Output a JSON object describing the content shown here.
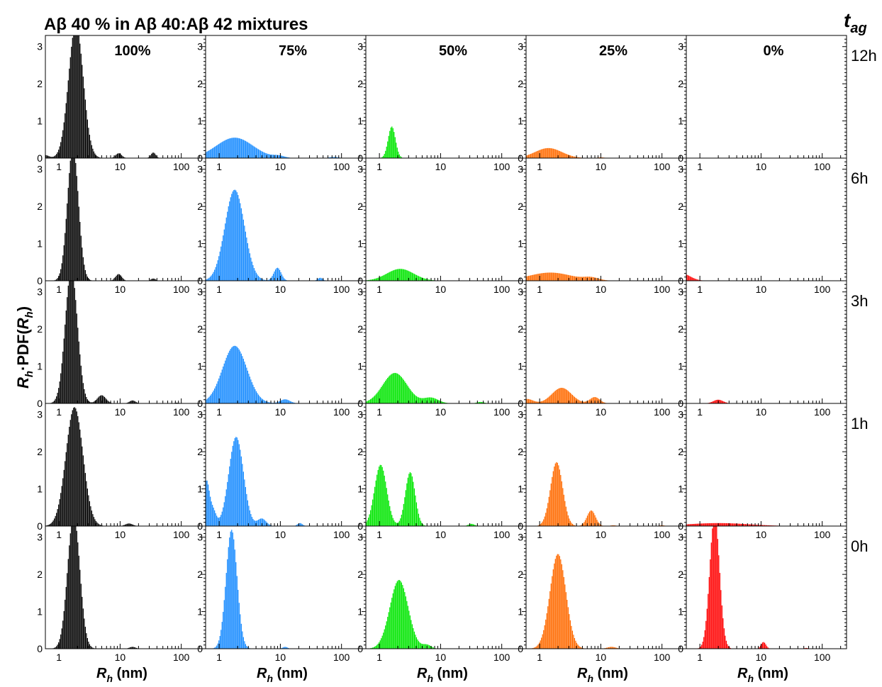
{
  "figure": {
    "title": "Aβ 40 % in Aβ 40:Aβ 42 mixtures",
    "t_label_main": "t",
    "t_label_sub": "ag",
    "ylabel_parts": [
      "R",
      "h",
      "·PDF(",
      "R",
      "h",
      ")"
    ],
    "xlabel_parts": [
      "R",
      "h",
      " (nm)"
    ]
  },
  "chart_data": {
    "type": "bar",
    "layout": "grid 5 rows x 5 columns of histogram panels",
    "columns": [
      "100%",
      "75%",
      "50%",
      "25%",
      "0%"
    ],
    "rows": [
      "12h",
      "6h",
      "3h",
      "1h",
      "0h"
    ],
    "colors": [
      "#000000",
      "#1a8cff",
      "#00e600",
      "#ff6a00",
      "#ff0000"
    ],
    "xscale": "log",
    "xlim": [
      0.6,
      250
    ],
    "ylim": [
      0,
      3.3
    ],
    "xticks": [
      1,
      10,
      100
    ],
    "yticks": [
      0,
      1,
      2,
      3
    ],
    "panels": [
      [
        {
          "peaks": [
            [
              1.9,
              3.6,
              0.12
            ],
            [
              0.6,
              0.08,
              0.06
            ],
            [
              9.5,
              0.13,
              0.05
            ],
            [
              35,
              0.15,
              0.04
            ]
          ]
        },
        {
          "peaks": [
            [
              1.8,
              0.55,
              0.3
            ],
            [
              9.5,
              0.05,
              0.09
            ],
            [
              75,
              0.03,
              0.08
            ]
          ]
        },
        {
          "peaks": [
            [
              1.6,
              0.85,
              0.06
            ]
          ]
        },
        {
          "peaks": [
            [
              1.4,
              0.27,
              0.22
            ],
            [
              10,
              0.02,
              0.06
            ]
          ]
        },
        {
          "peaks": []
        }
      ],
      [
        {
          "peaks": [
            [
              1.7,
              3.6,
              0.09
            ],
            [
              9.5,
              0.18,
              0.05
            ],
            [
              35,
              0.06,
              0.04
            ]
          ]
        },
        {
          "peaks": [
            [
              1.8,
              2.45,
              0.16
            ],
            [
              9.0,
              0.35,
              0.06
            ],
            [
              45,
              0.08,
              0.04
            ]
          ]
        },
        {
          "peaks": [
            [
              2.2,
              0.32,
              0.22
            ],
            [
              90,
              0.01,
              0.1
            ]
          ]
        },
        {
          "peaks": [
            [
              1.5,
              0.22,
              0.35
            ],
            [
              7.0,
              0.07,
              0.12
            ]
          ]
        },
        {
          "peaks": [
            [
              0.5,
              0.2,
              0.14
            ]
          ]
        }
      ],
      [
        {
          "peaks": [
            [
              1.6,
              3.6,
              0.1
            ],
            [
              5.0,
              0.22,
              0.07
            ],
            [
              16,
              0.08,
              0.05
            ],
            [
              85,
              0.02,
              0.04
            ]
          ]
        },
        {
          "peaks": [
            [
              1.8,
              1.55,
              0.2
            ],
            [
              12,
              0.11,
              0.08
            ],
            [
              180,
              0.01,
              0.08
            ]
          ]
        },
        {
          "peaks": [
            [
              1.8,
              0.82,
              0.2
            ],
            [
              7.0,
              0.15,
              0.12
            ],
            [
              45,
              0.04,
              0.06
            ]
          ]
        },
        {
          "peaks": [
            [
              0.62,
              0.12,
              0.1
            ],
            [
              2.3,
              0.42,
              0.16
            ],
            [
              8.0,
              0.17,
              0.08
            ],
            [
              60,
              0.01,
              0.05
            ]
          ]
        },
        {
          "peaks": [
            [
              2.0,
              0.1,
              0.08
            ]
          ]
        }
      ],
      [
        {
          "peaks": [
            [
              1.8,
              3.2,
              0.14
            ],
            [
              14,
              0.07,
              0.06
            ]
          ]
        },
        {
          "peaks": [
            [
              0.62,
              1.2,
              0.05
            ],
            [
              0.8,
              0.4,
              0.05
            ],
            [
              1.9,
              2.4,
              0.12
            ],
            [
              5.0,
              0.2,
              0.07
            ],
            [
              21,
              0.08,
              0.04
            ]
          ]
        },
        {
          "peaks": [
            [
              1.05,
              1.65,
              0.1
            ],
            [
              3.2,
              1.45,
              0.08
            ],
            [
              32,
              0.06,
              0.05
            ]
          ]
        },
        {
          "peaks": [
            [
              1.9,
              1.72,
              0.1
            ],
            [
              7.0,
              0.42,
              0.07
            ],
            [
              16,
              0.02,
              0.05
            ],
            [
              100,
              0.02,
              0.05
            ]
          ]
        },
        {
          "peaks": [
            [
              2.0,
              0.08,
              0.5
            ]
          ]
        }
      ],
      [
        {
          "peaks": [
            [
              1.75,
              3.6,
              0.1
            ],
            [
              16,
              0.05,
              0.05
            ]
          ]
        },
        {
          "peaks": [
            [
              1.6,
              3.2,
              0.09
            ],
            [
              12,
              0.05,
              0.04
            ]
          ]
        },
        {
          "peaks": [
            [
              2.1,
              1.85,
              0.15
            ],
            [
              6.0,
              0.1,
              0.07
            ]
          ]
        },
        {
          "peaks": [
            [
              2.0,
              2.55,
              0.13
            ],
            [
              15,
              0.05,
              0.07
            ]
          ]
        },
        {
          "peaks": [
            [
              1.75,
              3.6,
              0.08
            ],
            [
              11,
              0.18,
              0.04
            ],
            [
              55,
              0.02,
              0.04
            ]
          ]
        }
      ]
    ]
  }
}
